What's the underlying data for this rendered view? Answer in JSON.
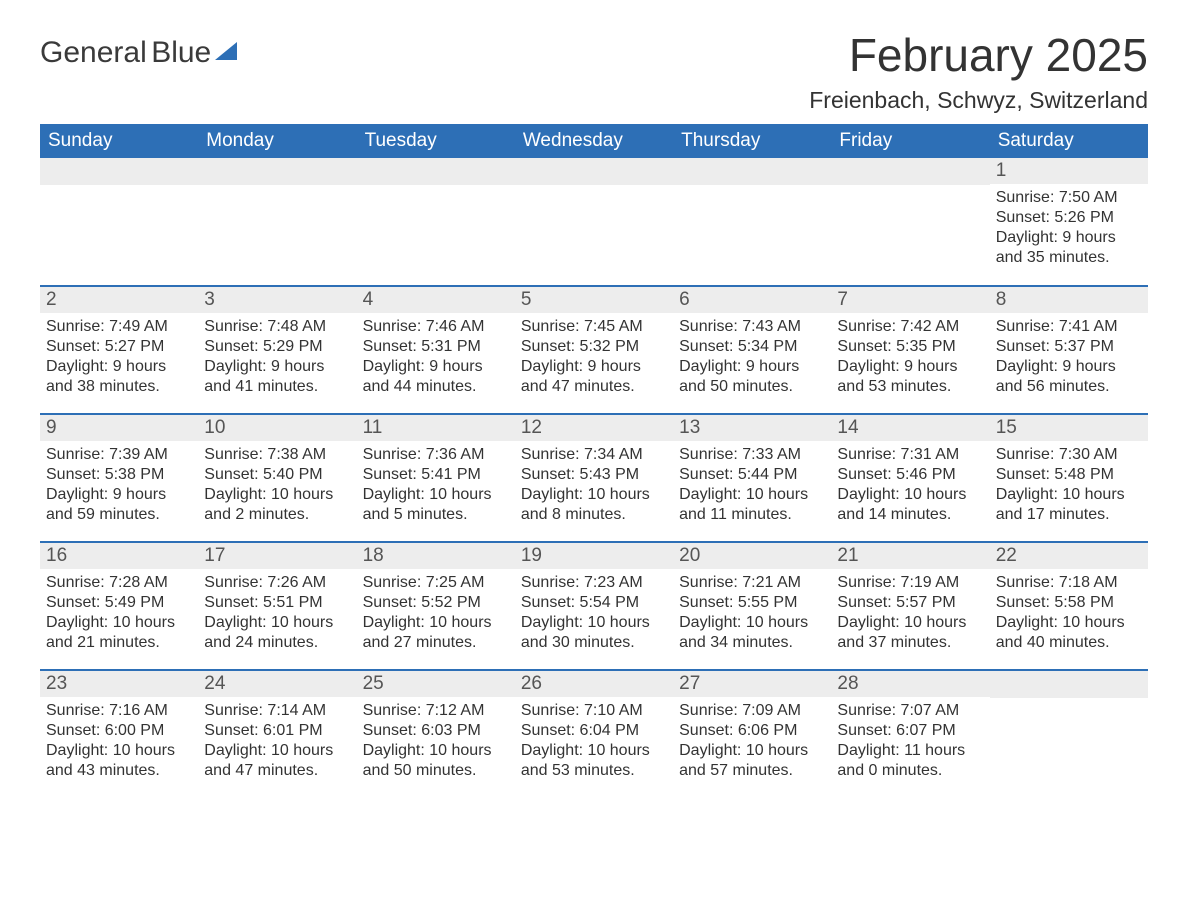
{
  "logo": {
    "word1": "General",
    "word2": "Blue"
  },
  "title": "February 2025",
  "subtitle": "Freienbach, Schwyz, Switzerland",
  "colors": {
    "header_bg": "#2d6fb6",
    "header_text": "#ffffff",
    "daynum_bg": "#ededed",
    "week_divider": "#2d6fb6",
    "body_text": "#333333",
    "page_bg": "#ffffff"
  },
  "daynames": [
    "Sunday",
    "Monday",
    "Tuesday",
    "Wednesday",
    "Thursday",
    "Friday",
    "Saturday"
  ],
  "labels": {
    "sunrise": "Sunrise: ",
    "sunset": "Sunset: ",
    "daylight": "Daylight: "
  },
  "weeks": [
    [
      null,
      null,
      null,
      null,
      null,
      null,
      {
        "n": "1",
        "sunrise": "7:50 AM",
        "sunset": "5:26 PM",
        "daylight": "9 hours and 35 minutes."
      }
    ],
    [
      {
        "n": "2",
        "sunrise": "7:49 AM",
        "sunset": "5:27 PM",
        "daylight": "9 hours and 38 minutes."
      },
      {
        "n": "3",
        "sunrise": "7:48 AM",
        "sunset": "5:29 PM",
        "daylight": "9 hours and 41 minutes."
      },
      {
        "n": "4",
        "sunrise": "7:46 AM",
        "sunset": "5:31 PM",
        "daylight": "9 hours and 44 minutes."
      },
      {
        "n": "5",
        "sunrise": "7:45 AM",
        "sunset": "5:32 PM",
        "daylight": "9 hours and 47 minutes."
      },
      {
        "n": "6",
        "sunrise": "7:43 AM",
        "sunset": "5:34 PM",
        "daylight": "9 hours and 50 minutes."
      },
      {
        "n": "7",
        "sunrise": "7:42 AM",
        "sunset": "5:35 PM",
        "daylight": "9 hours and 53 minutes."
      },
      {
        "n": "8",
        "sunrise": "7:41 AM",
        "sunset": "5:37 PM",
        "daylight": "9 hours and 56 minutes."
      }
    ],
    [
      {
        "n": "9",
        "sunrise": "7:39 AM",
        "sunset": "5:38 PM",
        "daylight": "9 hours and 59 minutes."
      },
      {
        "n": "10",
        "sunrise": "7:38 AM",
        "sunset": "5:40 PM",
        "daylight": "10 hours and 2 minutes."
      },
      {
        "n": "11",
        "sunrise": "7:36 AM",
        "sunset": "5:41 PM",
        "daylight": "10 hours and 5 minutes."
      },
      {
        "n": "12",
        "sunrise": "7:34 AM",
        "sunset": "5:43 PM",
        "daylight": "10 hours and 8 minutes."
      },
      {
        "n": "13",
        "sunrise": "7:33 AM",
        "sunset": "5:44 PM",
        "daylight": "10 hours and 11 minutes."
      },
      {
        "n": "14",
        "sunrise": "7:31 AM",
        "sunset": "5:46 PM",
        "daylight": "10 hours and 14 minutes."
      },
      {
        "n": "15",
        "sunrise": "7:30 AM",
        "sunset": "5:48 PM",
        "daylight": "10 hours and 17 minutes."
      }
    ],
    [
      {
        "n": "16",
        "sunrise": "7:28 AM",
        "sunset": "5:49 PM",
        "daylight": "10 hours and 21 minutes."
      },
      {
        "n": "17",
        "sunrise": "7:26 AM",
        "sunset": "5:51 PM",
        "daylight": "10 hours and 24 minutes."
      },
      {
        "n": "18",
        "sunrise": "7:25 AM",
        "sunset": "5:52 PM",
        "daylight": "10 hours and 27 minutes."
      },
      {
        "n": "19",
        "sunrise": "7:23 AM",
        "sunset": "5:54 PM",
        "daylight": "10 hours and 30 minutes."
      },
      {
        "n": "20",
        "sunrise": "7:21 AM",
        "sunset": "5:55 PM",
        "daylight": "10 hours and 34 minutes."
      },
      {
        "n": "21",
        "sunrise": "7:19 AM",
        "sunset": "5:57 PM",
        "daylight": "10 hours and 37 minutes."
      },
      {
        "n": "22",
        "sunrise": "7:18 AM",
        "sunset": "5:58 PM",
        "daylight": "10 hours and 40 minutes."
      }
    ],
    [
      {
        "n": "23",
        "sunrise": "7:16 AM",
        "sunset": "6:00 PM",
        "daylight": "10 hours and 43 minutes."
      },
      {
        "n": "24",
        "sunrise": "7:14 AM",
        "sunset": "6:01 PM",
        "daylight": "10 hours and 47 minutes."
      },
      {
        "n": "25",
        "sunrise": "7:12 AM",
        "sunset": "6:03 PM",
        "daylight": "10 hours and 50 minutes."
      },
      {
        "n": "26",
        "sunrise": "7:10 AM",
        "sunset": "6:04 PM",
        "daylight": "10 hours and 53 minutes."
      },
      {
        "n": "27",
        "sunrise": "7:09 AM",
        "sunset": "6:06 PM",
        "daylight": "10 hours and 57 minutes."
      },
      {
        "n": "28",
        "sunrise": "7:07 AM",
        "sunset": "6:07 PM",
        "daylight": "11 hours and 0 minutes."
      },
      null
    ]
  ]
}
